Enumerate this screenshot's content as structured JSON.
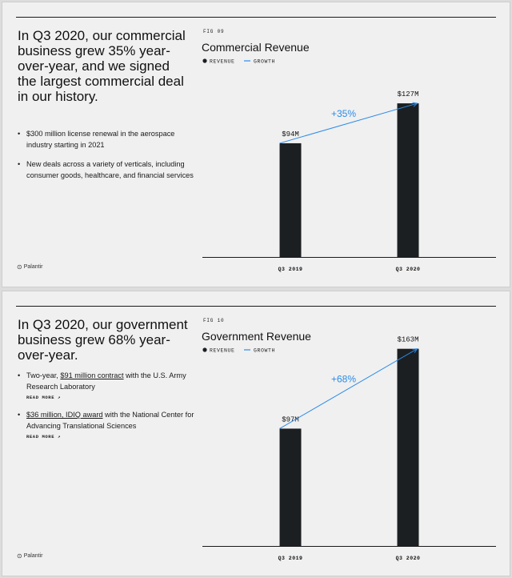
{
  "slides": [
    {
      "headline": "In Q3 2020, our commercial business grew 35% year-over-year, and we signed the largest commercial deal in our history.",
      "bullets": [
        {
          "pre": "$300 million license renewal in the aerospace industry starting in 2021",
          "link": "",
          "post": "",
          "read_more": ""
        },
        {
          "pre": "New deals across a variety of verticals, including consumer goods, healthcare, and financial services",
          "link": "",
          "post": "",
          "read_more": ""
        }
      ],
      "logo": "Palantir"
    },
    {
      "headline": "In Q3 2020, our government business grew 68% year-over-year.",
      "bullets": [
        {
          "pre": "Two-year, ",
          "link": "$91 million contract",
          "post": " with the U.S. Army Research Laboratory",
          "read_more": "READ MORE ↗"
        },
        {
          "pre": "",
          "link": "$36 million, IDIQ award",
          "post": " with the National Center for Advancing Translational Sciences",
          "read_more": "READ MORE ↗"
        }
      ],
      "logo": "Palantir"
    }
  ],
  "colors": {
    "bar": "#1b1f22",
    "growth": "#2b8be8"
  },
  "chart_data": [
    {
      "type": "bar",
      "fig": "FIG 09",
      "title": "Commercial Revenue",
      "legend": [
        "REVENUE",
        "GROWTH"
      ],
      "categories": [
        "Q3 2019",
        "Q3 2020"
      ],
      "values": [
        94,
        127
      ],
      "value_labels": [
        "$94M",
        "$127M"
      ],
      "growth_label": "+35%",
      "ylim": [
        0,
        180
      ],
      "grid": false,
      "legend_position": "top-left"
    },
    {
      "type": "bar",
      "fig": "FIG 10",
      "title": "Government Revenue",
      "legend": [
        "REVENUE",
        "GROWTH"
      ],
      "categories": [
        "Q3 2019",
        "Q3 2020"
      ],
      "values": [
        97,
        163
      ],
      "value_labels": [
        "$97M",
        "$163M"
      ],
      "growth_label": "+68%",
      "ylim": [
        0,
        180
      ],
      "grid": false,
      "legend_position": "top-left"
    }
  ]
}
